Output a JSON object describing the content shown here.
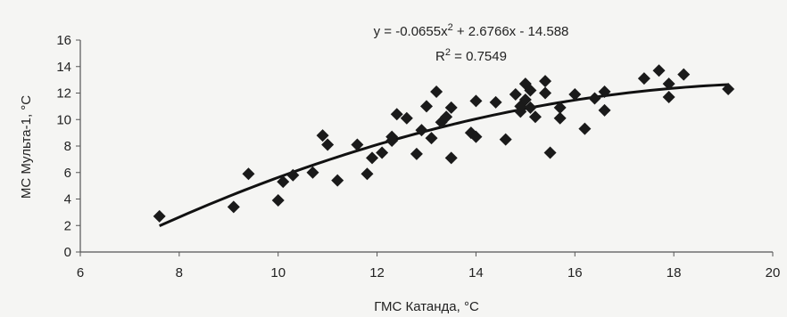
{
  "chart_data": {
    "type": "scatter",
    "title": "",
    "xlabel": "ГМС Катанда, °C",
    "ylabel": "МС Мульта-1, °C",
    "xlim": [
      6,
      20
    ],
    "ylim": [
      0,
      16
    ],
    "xticks": [
      6,
      8,
      10,
      12,
      14,
      16,
      18,
      20
    ],
    "yticks": [
      0,
      2,
      4,
      6,
      8,
      10,
      12,
      14,
      16
    ],
    "grid": false,
    "legend": "none",
    "marker": "diamond",
    "marker_color": "#1a1a1a",
    "trendline": {
      "type": "polynomial",
      "coefficients": {
        "a": -0.0655,
        "b": 2.6766,
        "c": -14.588
      },
      "x_range": [
        7.6,
        19.1
      ],
      "equation_text": "y = -0.0655x",
      "equation_exp": "2",
      "equation_rest": " + 2.6766x - 14.588",
      "r2_text": "R",
      "r2_exp": "2",
      "r2_rest": " = 0.7549"
    },
    "points": [
      {
        "x": 7.6,
        "y": 2.7
      },
      {
        "x": 9.1,
        "y": 3.4
      },
      {
        "x": 9.4,
        "y": 5.9
      },
      {
        "x": 10.0,
        "y": 3.9
      },
      {
        "x": 10.1,
        "y": 5.3
      },
      {
        "x": 10.3,
        "y": 5.8
      },
      {
        "x": 10.7,
        "y": 6.0
      },
      {
        "x": 10.9,
        "y": 8.8
      },
      {
        "x": 11.0,
        "y": 8.1
      },
      {
        "x": 11.2,
        "y": 5.4
      },
      {
        "x": 11.6,
        "y": 8.1
      },
      {
        "x": 11.8,
        "y": 5.9
      },
      {
        "x": 11.9,
        "y": 7.1
      },
      {
        "x": 12.1,
        "y": 7.5
      },
      {
        "x": 12.3,
        "y": 8.4
      },
      {
        "x": 12.3,
        "y": 8.7
      },
      {
        "x": 12.4,
        "y": 10.4
      },
      {
        "x": 12.6,
        "y": 10.1
      },
      {
        "x": 12.8,
        "y": 7.4
      },
      {
        "x": 12.9,
        "y": 9.2
      },
      {
        "x": 13.0,
        "y": 11.0
      },
      {
        "x": 13.1,
        "y": 8.6
      },
      {
        "x": 13.2,
        "y": 12.1
      },
      {
        "x": 13.3,
        "y": 9.8
      },
      {
        "x": 13.4,
        "y": 10.2
      },
      {
        "x": 13.5,
        "y": 7.1
      },
      {
        "x": 13.5,
        "y": 10.9
      },
      {
        "x": 13.9,
        "y": 9.0
      },
      {
        "x": 14.0,
        "y": 8.7
      },
      {
        "x": 14.0,
        "y": 11.4
      },
      {
        "x": 14.4,
        "y": 11.3
      },
      {
        "x": 14.6,
        "y": 8.5
      },
      {
        "x": 14.8,
        "y": 11.9
      },
      {
        "x": 14.9,
        "y": 10.6
      },
      {
        "x": 14.9,
        "y": 11.0
      },
      {
        "x": 15.0,
        "y": 12.7
      },
      {
        "x": 15.0,
        "y": 11.5
      },
      {
        "x": 15.1,
        "y": 12.2
      },
      {
        "x": 15.1,
        "y": 10.9
      },
      {
        "x": 15.2,
        "y": 10.2
      },
      {
        "x": 15.4,
        "y": 12.9
      },
      {
        "x": 15.4,
        "y": 12.0
      },
      {
        "x": 15.5,
        "y": 7.5
      },
      {
        "x": 15.7,
        "y": 10.9
      },
      {
        "x": 15.7,
        "y": 10.1
      },
      {
        "x": 16.0,
        "y": 11.9
      },
      {
        "x": 16.2,
        "y": 9.3
      },
      {
        "x": 16.4,
        "y": 11.6
      },
      {
        "x": 16.6,
        "y": 12.1
      },
      {
        "x": 16.6,
        "y": 10.7
      },
      {
        "x": 17.4,
        "y": 13.1
      },
      {
        "x": 17.7,
        "y": 13.7
      },
      {
        "x": 17.9,
        "y": 11.7
      },
      {
        "x": 17.9,
        "y": 12.7
      },
      {
        "x": 18.2,
        "y": 13.4
      },
      {
        "x": 19.1,
        "y": 12.3
      }
    ]
  }
}
